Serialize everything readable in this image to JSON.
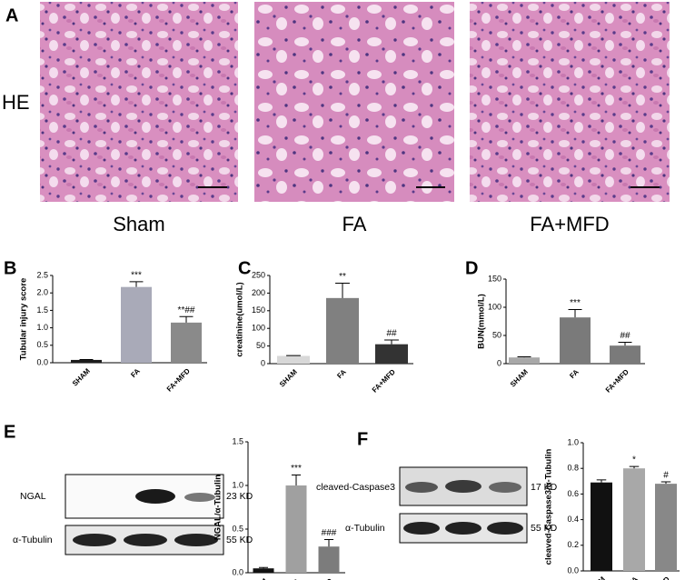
{
  "figure": {
    "panels": [
      "A",
      "B",
      "C",
      "D",
      "E",
      "F"
    ],
    "stain": "HE",
    "image_captions": [
      "Sham",
      "FA",
      "FA+MFD"
    ],
    "blot_e": {
      "target": "NGAL",
      "target_size": "23 KD",
      "control": "α-Tubulin",
      "control_size": "55 KD"
    },
    "blot_f": {
      "target": "cleaved-Caspase3",
      "target_size": "17 KD",
      "control": "α-Tubulin",
      "control_size": "55 KD"
    }
  },
  "chart_data": [
    {
      "type": "bar",
      "ylabel": "Tubular injury score",
      "categories": [
        "SHAM",
        "FA",
        "FA+MFD"
      ],
      "values": [
        0.08,
        2.17,
        1.15
      ],
      "errors": [
        0.01,
        0.15,
        0.17
      ],
      "annotations": [
        null,
        "***",
        "**##"
      ],
      "colors": [
        "#1c1c1c",
        "#a9aab8",
        "#8a8a8a"
      ],
      "ylim": [
        0,
        2.5
      ],
      "yticks": [
        {
          "value": 0,
          "label": "0.0"
        },
        0.5,
        {
          "value": 1,
          "label": "1.0"
        },
        1.5,
        {
          "value": 2,
          "label": "2.0"
        },
        2.5
      ]
    },
    {
      "type": "bar",
      "ylabel": "creatinine(umol/L)",
      "categories": [
        "SHAM",
        "FA",
        "FA+MFD"
      ],
      "values": [
        22,
        186,
        55
      ],
      "errors": [
        1,
        42,
        12
      ],
      "annotations": [
        null,
        "**",
        "##"
      ],
      "colors": [
        "#d8d8d8",
        "#808080",
        "#333333"
      ],
      "ylim": [
        0,
        250
      ],
      "yticks": [
        0,
        50,
        100,
        150,
        200,
        250
      ]
    },
    {
      "type": "bar",
      "ylabel": "BUN(mmol/L)",
      "categories": [
        "SHAM",
        "FA",
        "FA+MFD"
      ],
      "values": [
        11,
        82,
        32
      ],
      "errors": [
        1,
        14,
        6
      ],
      "annotations": [
        null,
        "***",
        "##"
      ],
      "colors": [
        "#a8a8a8",
        "#7a7a7a",
        "#7a7a7a"
      ],
      "ylim": [
        0,
        150
      ],
      "yticks": [
        0,
        50,
        100,
        150
      ]
    },
    {
      "type": "bar",
      "ylabel": "NGAL/α-Tubulin",
      "categories": [
        "SHAM",
        "FA",
        "MFD"
      ],
      "values": [
        0.05,
        1.0,
        0.3
      ],
      "errors": [
        0.01,
        0.12,
        0.08
      ],
      "annotations": [
        null,
        "***",
        "###"
      ],
      "colors": [
        "#111111",
        "#a0a0a0",
        "#7c7c7c"
      ],
      "ylim": [
        0,
        1.5
      ],
      "yticks": [
        {
          "value": 0,
          "label": "0.0"
        },
        0.5,
        {
          "value": 1,
          "label": "1.0"
        },
        1.5
      ]
    },
    {
      "type": "bar",
      "ylabel": "cleaved-Caspase3/α-Tubulin",
      "categories": [
        "SHAM",
        "FA",
        "MFD"
      ],
      "values": [
        0.69,
        0.8,
        0.68
      ],
      "errors": [
        0.02,
        0.015,
        0.015
      ],
      "annotations": [
        null,
        "*",
        "#"
      ],
      "colors": [
        "#111111",
        "#a8a8a8",
        "#888888"
      ],
      "ylim": [
        0,
        1.0
      ],
      "yticks": [
        {
          "value": 0,
          "label": "0.0"
        },
        0.2,
        0.4,
        0.6,
        0.8,
        {
          "value": 1,
          "label": "1.0"
        }
      ]
    }
  ]
}
